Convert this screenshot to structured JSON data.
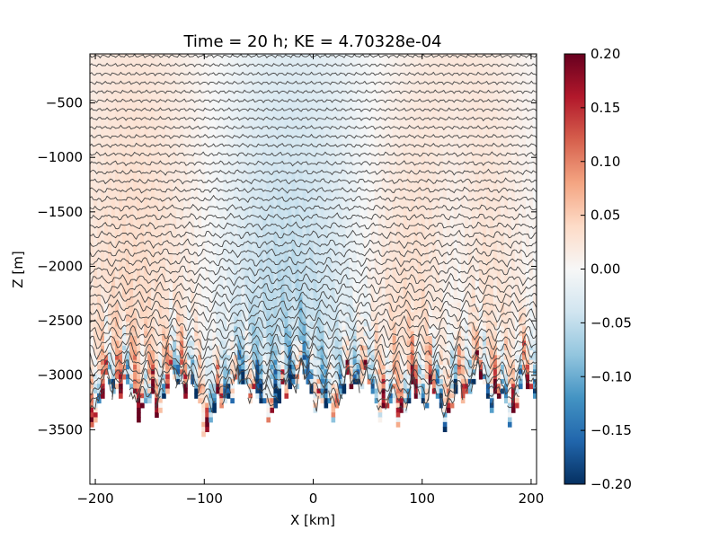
{
  "chart_data": {
    "type": "heatmap",
    "title": "Time = 20 h; KE = 4.70328e-04",
    "xlabel": "X [km]",
    "ylabel": "Z [m]",
    "xlim": [
      -205,
      205
    ],
    "ylim": [
      -4000,
      -50
    ],
    "x_ticks": [
      -200,
      -100,
      0,
      100,
      200
    ],
    "x_tick_labels": [
      "−200",
      "−100",
      "0",
      "100",
      "200"
    ],
    "y_ticks": [
      -500,
      -1000,
      -1500,
      -2000,
      -2500,
      -3000,
      -3500
    ],
    "y_tick_labels": [
      "−500",
      "−1000",
      "−1500",
      "−2000",
      "−2500",
      "−3000",
      "−3500"
    ],
    "colorbar": {
      "vmin": -0.2,
      "vmax": 0.2,
      "colormap": "RdBu_r",
      "ticks": [
        0.2,
        0.15,
        0.1,
        0.05,
        0.0,
        -0.05,
        -0.1,
        -0.15,
        -0.2
      ],
      "tick_labels": [
        "0.20",
        "0.15",
        "0.10",
        "0.05",
        "0.00",
        "−0.05",
        "−0.10",
        "−0.15",
        "−0.20"
      ],
      "colors": [
        "#053061",
        "#2166ac",
        "#4393c3",
        "#92c5de",
        "#d1e5f0",
        "#f7f7f7",
        "#fddbc7",
        "#f4a582",
        "#d6604d",
        "#b2182b",
        "#67001f"
      ]
    },
    "contour_color": "#444444",
    "grid": false
  }
}
